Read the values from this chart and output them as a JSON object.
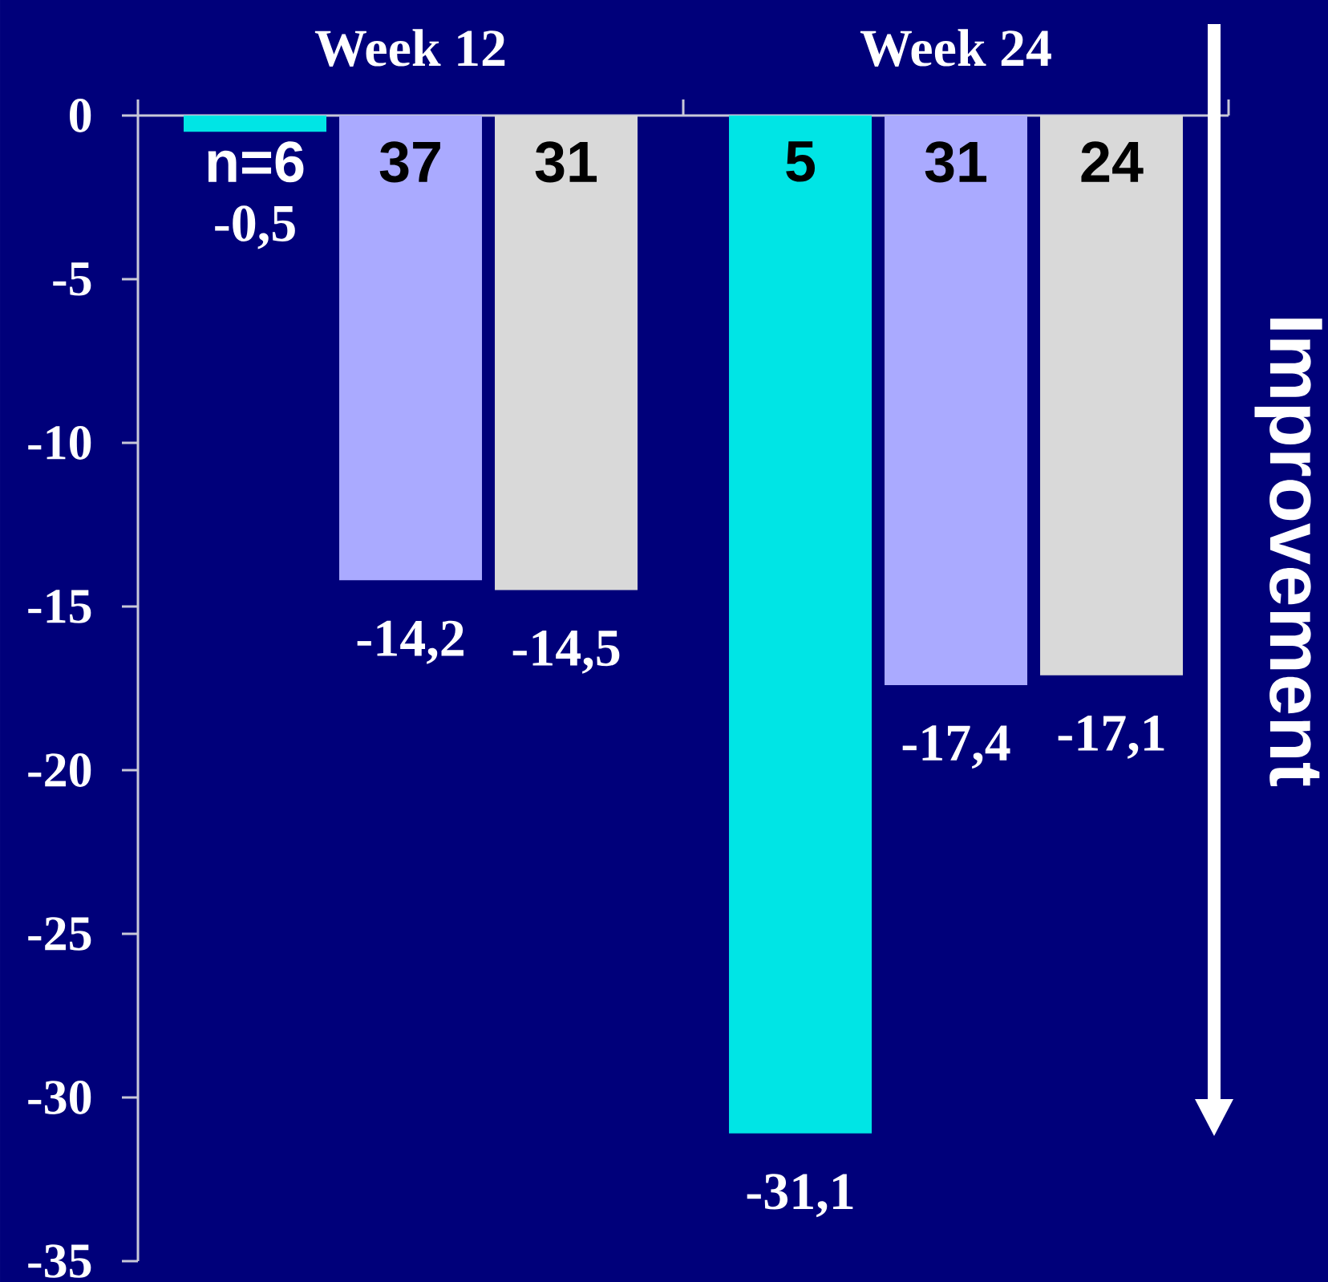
{
  "chart_data": {
    "type": "bar",
    "categories": [
      "Week 12",
      "Week 24"
    ],
    "series": [
      {
        "color": "#00e5e5",
        "values": [
          -0.5,
          -31.1
        ],
        "value_labels": [
          "-0,5",
          "-31,1"
        ]
      },
      {
        "color": "#aaaaff",
        "values": [
          -14.2,
          -17.4
        ],
        "value_labels": [
          "-14,2",
          "-17,4"
        ]
      },
      {
        "color": "#d9d9d9",
        "values": [
          -14.5,
          -17.1
        ],
        "value_labels": [
          "-14,5",
          "-17,1"
        ]
      }
    ],
    "ylim": [
      -35,
      0
    ],
    "yticks": [
      -35,
      -30,
      -25,
      -20,
      -15,
      -10,
      -5,
      0
    ],
    "annotations": [
      "n=6",
      "37",
      "31",
      "5",
      "31",
      "24",
      "Improvement"
    ]
  }
}
